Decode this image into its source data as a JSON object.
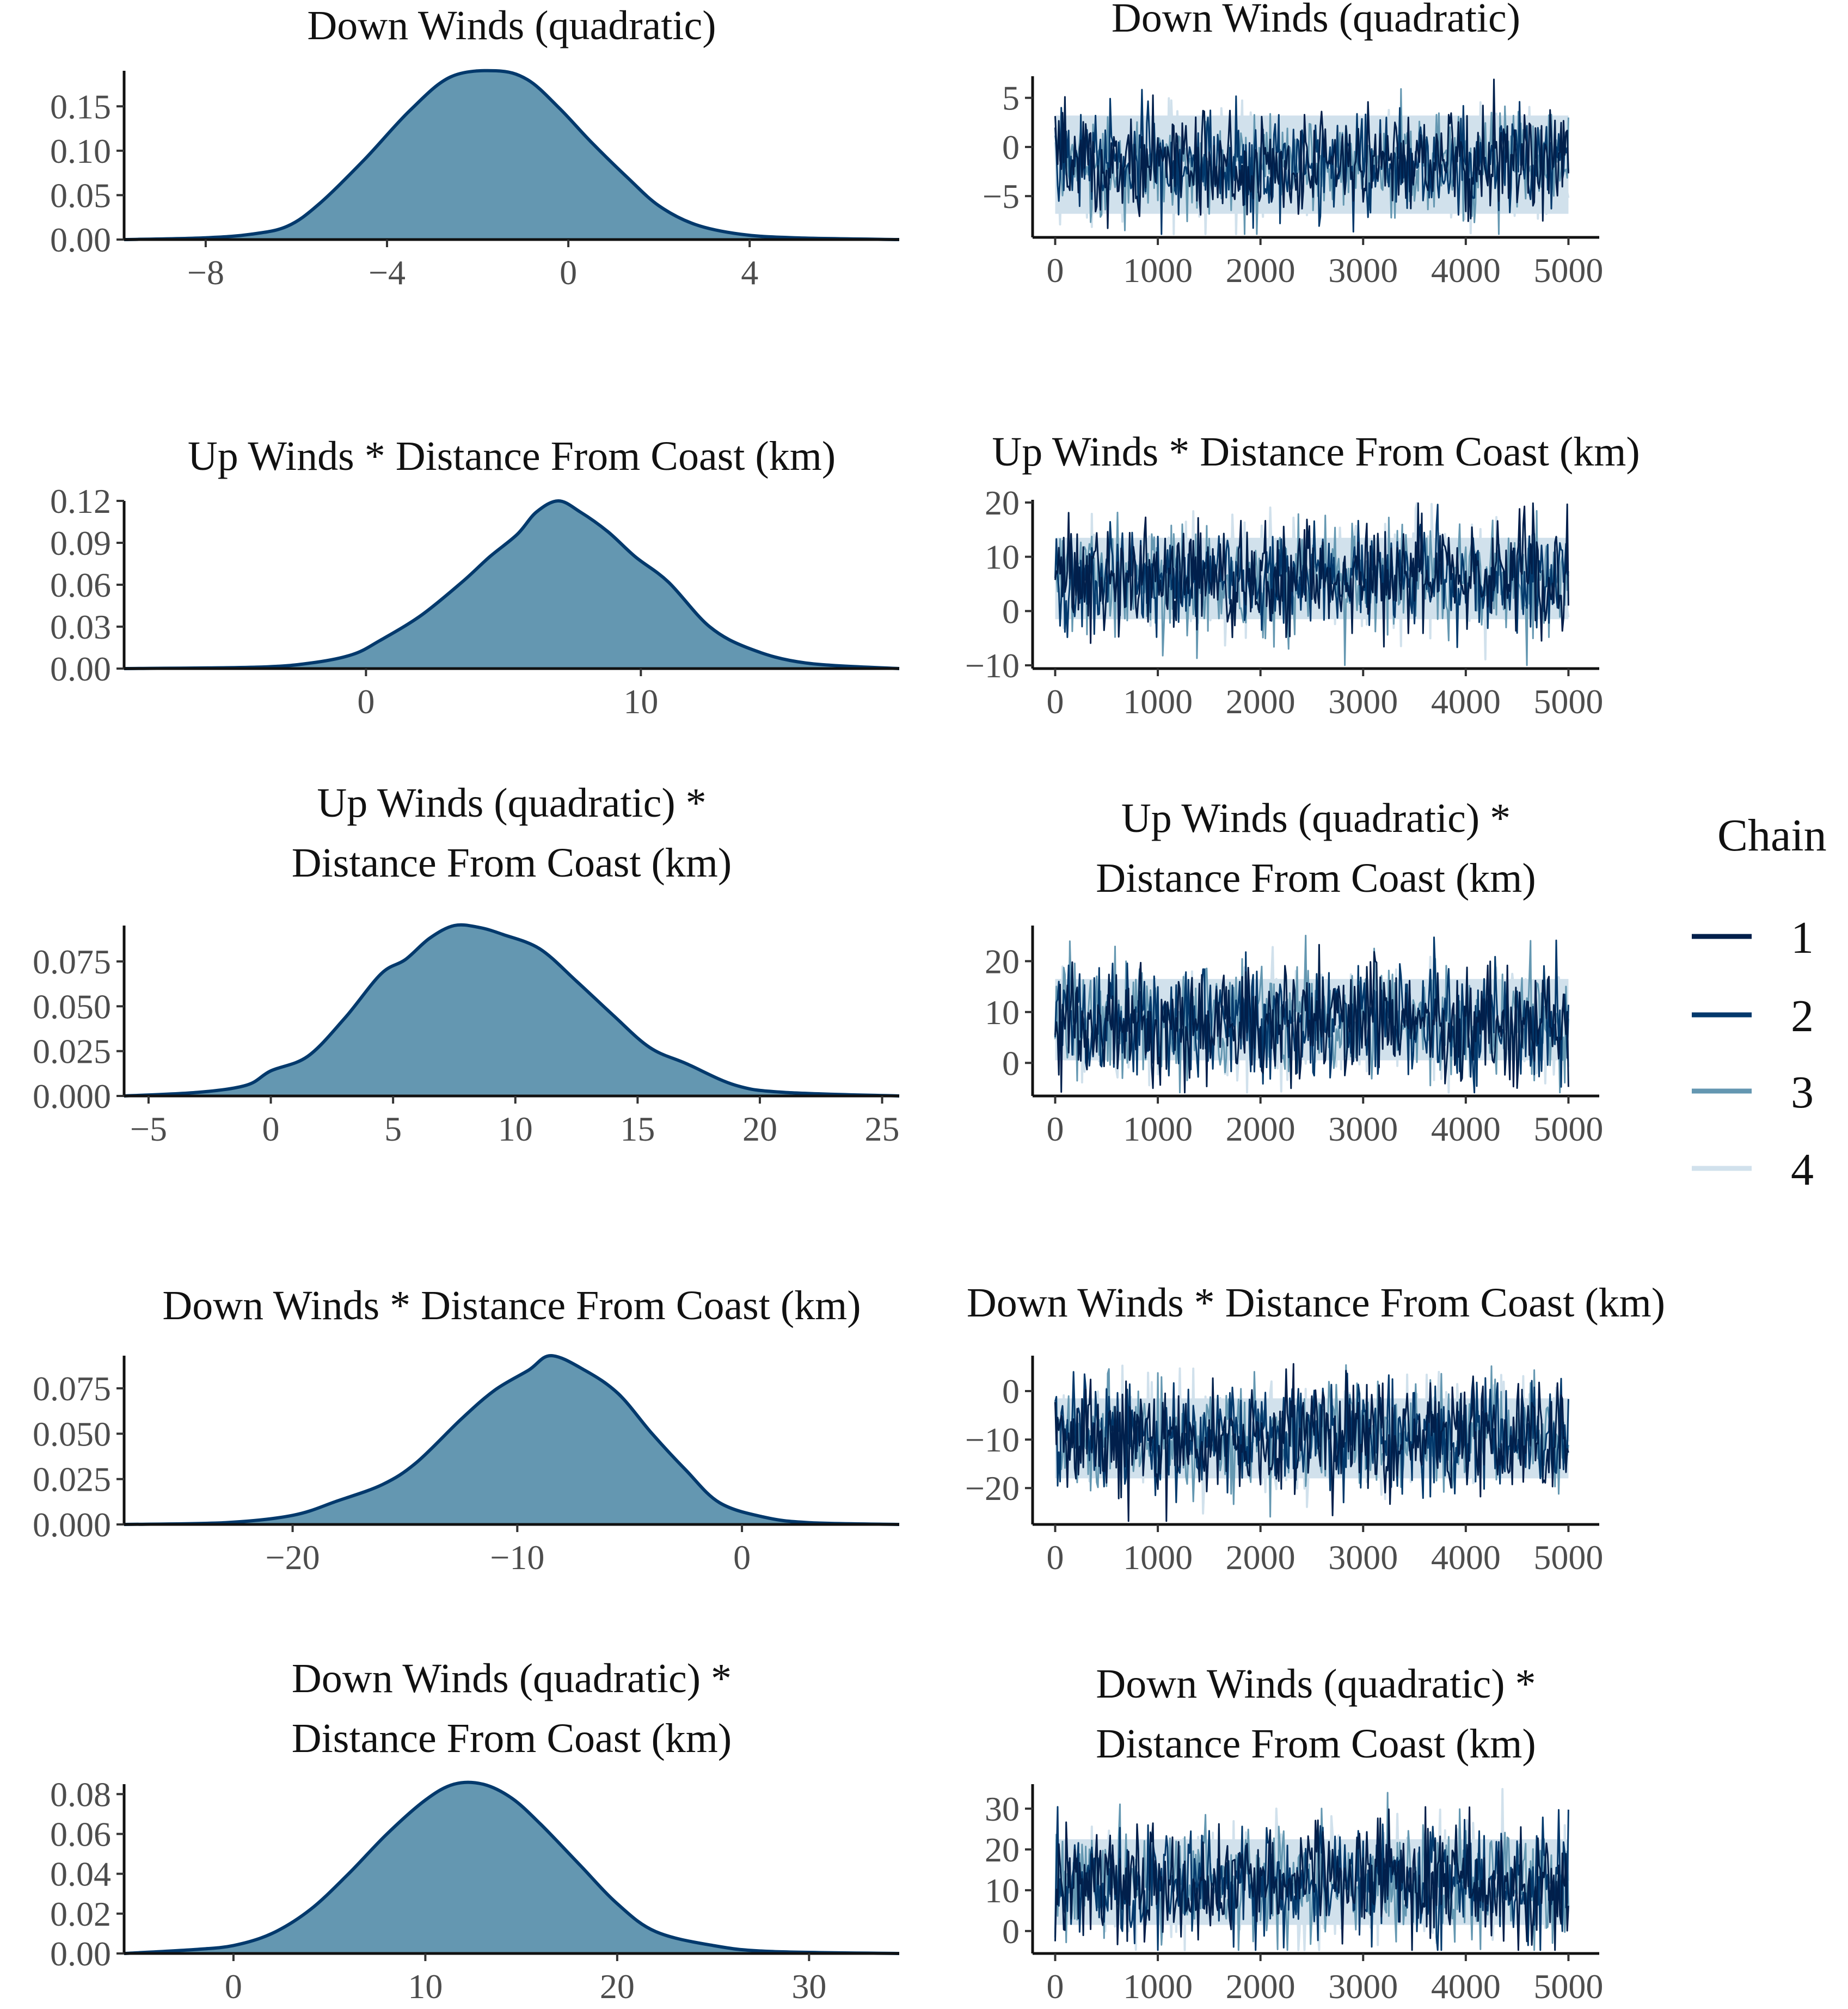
{
  "legend": {
    "title": "Chain",
    "items": [
      {
        "label": "1",
        "color": "#011f4b"
      },
      {
        "label": "2",
        "color": "#03396c"
      },
      {
        "label": "3",
        "color": "#6497b1"
      },
      {
        "label": "4",
        "color": "#d1e1ec"
      }
    ]
  },
  "colors": {
    "density_fill": "#6497b1",
    "density_line": "#03396c",
    "trace_band": "#d1e1ec"
  },
  "chart_data": [
    {
      "id": "d1",
      "type": "area",
      "title": [
        "Down Winds (quadratic)"
      ],
      "xlim": [
        -9.8,
        7.3
      ],
      "ylim": [
        0,
        0.19
      ],
      "xticks": [
        {
          "v": -8,
          "label": "−8"
        },
        {
          "v": -4,
          "label": "−4"
        },
        {
          "v": 0,
          "label": "0"
        },
        {
          "v": 4,
          "label": "4"
        }
      ],
      "yticks": [
        {
          "v": 0,
          "label": "0.00"
        },
        {
          "v": 0.05,
          "label": "0.05"
        },
        {
          "v": 0.1,
          "label": "0.10"
        },
        {
          "v": 0.15,
          "label": "0.15"
        }
      ],
      "x": [
        -9.8,
        -8,
        -7,
        -6.2,
        -5.5,
        -4.5,
        -3.5,
        -2.6,
        -1.6,
        -0.9,
        -0.2,
        0.5,
        1.3,
        2,
        2.8,
        3.8,
        5,
        7.3
      ],
      "y": [
        0,
        0.002,
        0.006,
        0.015,
        0.04,
        0.09,
        0.145,
        0.183,
        0.19,
        0.18,
        0.148,
        0.11,
        0.07,
        0.038,
        0.017,
        0.006,
        0.002,
        0
      ]
    },
    {
      "id": "t1",
      "type": "line",
      "title": [
        "Down Winds (quadratic)"
      ],
      "xlim": [
        -220,
        5300
      ],
      "ylim": [
        -9.2,
        7.2
      ],
      "xticks": [
        {
          "v": 0,
          "label": "0"
        },
        {
          "v": 1000,
          "label": "1000"
        },
        {
          "v": 2000,
          "label": "2000"
        },
        {
          "v": 3000,
          "label": "3000"
        },
        {
          "v": 4000,
          "label": "4000"
        },
        {
          "v": 5000,
          "label": "5000"
        }
      ],
      "yticks": [
        {
          "v": -5,
          "label": "−5"
        },
        {
          "v": 0,
          "label": "0"
        },
        {
          "v": 5,
          "label": "5"
        }
      ],
      "band": [
        -6.8,
        3.2
      ],
      "chain_mean": -1.8,
      "chain_spread": 2.6,
      "x_max": 5000
    },
    {
      "id": "d2",
      "type": "area",
      "title": [
        "Up Winds * Distance From Coast (km)"
      ],
      "xlim": [
        -8.8,
        19.4
      ],
      "ylim": [
        0,
        0.12
      ],
      "xticks": [
        {
          "v": 0,
          "label": "0"
        },
        {
          "v": 10,
          "label": "10"
        }
      ],
      "yticks": [
        {
          "v": 0,
          "label": "0.00"
        },
        {
          "v": 0.03,
          "label": "0.03"
        },
        {
          "v": 0.06,
          "label": "0.06"
        },
        {
          "v": 0.09,
          "label": "0.09"
        },
        {
          "v": 0.12,
          "label": "0.12"
        }
      ],
      "x": [
        -8.8,
        -4,
        -2,
        -0.5,
        0.5,
        2,
        3.5,
        4.5,
        5.5,
        6.2,
        7,
        7.8,
        8.8,
        9.8,
        11,
        12.5,
        14,
        16,
        19.4
      ],
      "y": [
        0,
        0.001,
        0.004,
        0.01,
        0.02,
        0.038,
        0.062,
        0.08,
        0.096,
        0.112,
        0.12,
        0.112,
        0.098,
        0.08,
        0.062,
        0.03,
        0.014,
        0.004,
        0
      ]
    },
    {
      "id": "t2",
      "type": "line",
      "title": [
        "Up Winds * Distance From Coast (km)"
      ],
      "xlim": [
        -220,
        5300
      ],
      "ylim": [
        -10.6,
        20.5
      ],
      "xticks": [
        {
          "v": 0,
          "label": "0"
        },
        {
          "v": 1000,
          "label": "1000"
        },
        {
          "v": 2000,
          "label": "2000"
        },
        {
          "v": 3000,
          "label": "3000"
        },
        {
          "v": 4000,
          "label": "4000"
        },
        {
          "v": 5000,
          "label": "5000"
        }
      ],
      "yticks": [
        {
          "v": -10,
          "label": "−10"
        },
        {
          "v": 0,
          "label": "0"
        },
        {
          "v": 10,
          "label": "10"
        },
        {
          "v": 20,
          "label": "20"
        }
      ],
      "band": [
        -1.5,
        13.5
      ],
      "chain_mean": 6.2,
      "chain_spread": 4.8,
      "x_max": 5000
    },
    {
      "id": "d3",
      "type": "area",
      "title": [
        "Up Winds (quadratic) *",
        "Distance From Coast (km)"
      ],
      "xlim": [
        -6,
        25.7
      ],
      "ylim": [
        0,
        0.095
      ],
      "xticks": [
        {
          "v": -5,
          "label": "−5"
        },
        {
          "v": 0,
          "label": "0"
        },
        {
          "v": 5,
          "label": "5"
        },
        {
          "v": 10,
          "label": "10"
        },
        {
          "v": 15,
          "label": "15"
        },
        {
          "v": 20,
          "label": "20"
        },
        {
          "v": 25,
          "label": "25"
        }
      ],
      "yticks": [
        {
          "v": 0,
          "label": "0.000"
        },
        {
          "v": 0.025,
          "label": "0.025"
        },
        {
          "v": 0.05,
          "label": "0.050"
        },
        {
          "v": 0.075,
          "label": "0.075"
        }
      ],
      "x": [
        -6,
        -3,
        -1,
        0,
        1.5,
        3,
        4.5,
        5.5,
        6.5,
        7.5,
        8.5,
        9.5,
        11,
        12.5,
        14,
        15.5,
        17,
        19,
        21,
        25.7
      ],
      "y": [
        0,
        0.002,
        0.006,
        0.014,
        0.022,
        0.043,
        0.068,
        0.076,
        0.088,
        0.095,
        0.094,
        0.09,
        0.082,
        0.064,
        0.045,
        0.027,
        0.018,
        0.006,
        0.002,
        0
      ]
    },
    {
      "id": "t3",
      "type": "line",
      "title": [
        "Up Winds (quadratic) *",
        "Distance From Coast (km)"
      ],
      "xlim": [
        -220,
        5300
      ],
      "ylim": [
        -6.5,
        27
      ],
      "xticks": [
        {
          "v": 0,
          "label": "0"
        },
        {
          "v": 1000,
          "label": "1000"
        },
        {
          "v": 2000,
          "label": "2000"
        },
        {
          "v": 3000,
          "label": "3000"
        },
        {
          "v": 4000,
          "label": "4000"
        },
        {
          "v": 5000,
          "label": "5000"
        }
      ],
      "yticks": [
        {
          "v": 0,
          "label": "0"
        },
        {
          "v": 10,
          "label": "10"
        },
        {
          "v": 20,
          "label": "20"
        }
      ],
      "band": [
        0.5,
        16.5
      ],
      "chain_mean": 8,
      "chain_spread": 5.6,
      "x_max": 5000
    },
    {
      "id": "d4",
      "type": "area",
      "title": [
        "Down Winds * Distance From Coast (km)"
      ],
      "xlim": [
        -27.5,
        7
      ],
      "ylim": [
        0,
        0.093
      ],
      "xticks": [
        {
          "v": -20,
          "label": "−20"
        },
        {
          "v": -10,
          "label": "−10"
        },
        {
          "v": 0,
          "label": "0"
        }
      ],
      "yticks": [
        {
          "v": 0,
          "label": "0.000"
        },
        {
          "v": 0.025,
          "label": "0.025"
        },
        {
          "v": 0.05,
          "label": "0.050"
        },
        {
          "v": 0.075,
          "label": "0.075"
        }
      ],
      "x": [
        -27.5,
        -23,
        -20,
        -18,
        -16,
        -14.5,
        -12.5,
        -11,
        -9.5,
        -8.5,
        -7,
        -5.5,
        -4,
        -2.5,
        -1,
        1,
        3,
        7
      ],
      "y": [
        0,
        0.001,
        0.005,
        0.013,
        0.022,
        0.034,
        0.058,
        0.074,
        0.085,
        0.093,
        0.085,
        0.072,
        0.05,
        0.03,
        0.012,
        0.004,
        0.001,
        0
      ]
    },
    {
      "id": "t4",
      "type": "line",
      "title": [
        "Down Winds * Distance From Coast (km)"
      ],
      "xlim": [
        -220,
        5300
      ],
      "ylim": [
        -27.5,
        7.3
      ],
      "xticks": [
        {
          "v": 0,
          "label": "0"
        },
        {
          "v": 1000,
          "label": "1000"
        },
        {
          "v": 2000,
          "label": "2000"
        },
        {
          "v": 3000,
          "label": "3000"
        },
        {
          "v": 4000,
          "label": "4000"
        },
        {
          "v": 5000,
          "label": "5000"
        }
      ],
      "yticks": [
        {
          "v": -20,
          "label": "−20"
        },
        {
          "v": -10,
          "label": "−10"
        },
        {
          "v": 0,
          "label": "0"
        }
      ],
      "band": [
        -18,
        -1.5
      ],
      "chain_mean": -9.5,
      "chain_spread": 5.8,
      "x_max": 5000
    },
    {
      "id": "d5",
      "type": "area",
      "title": [
        "Down Winds (quadratic) *",
        "Distance From Coast (km)"
      ],
      "xlim": [
        -5.7,
        34.7
      ],
      "ylim": [
        0,
        0.085
      ],
      "xticks": [
        {
          "v": 0,
          "label": "0"
        },
        {
          "v": 10,
          "label": "10"
        },
        {
          "v": 20,
          "label": "20"
        },
        {
          "v": 30,
          "label": "30"
        }
      ],
      "yticks": [
        {
          "v": 0,
          "label": "0.00"
        },
        {
          "v": 0.02,
          "label": "0.02"
        },
        {
          "v": 0.04,
          "label": "0.04"
        },
        {
          "v": 0.06,
          "label": "0.06"
        },
        {
          "v": 0.08,
          "label": "0.08"
        }
      ],
      "x": [
        -5.7,
        -2,
        0,
        2,
        4,
        6,
        8,
        10,
        11.5,
        13,
        14.5,
        16,
        18,
        20,
        22,
        25,
        28,
        34.7
      ],
      "y": [
        0,
        0.002,
        0.004,
        0.01,
        0.022,
        0.04,
        0.06,
        0.077,
        0.085,
        0.085,
        0.078,
        0.065,
        0.045,
        0.025,
        0.011,
        0.004,
        0.001,
        0
      ]
    },
    {
      "id": "t5",
      "type": "line",
      "title": [
        "Down Winds (quadratic) *",
        "Distance From Coast (km)"
      ],
      "xlim": [
        -220,
        5300
      ],
      "ylim": [
        -5.5,
        36
      ],
      "xticks": [
        {
          "v": 0,
          "label": "0"
        },
        {
          "v": 1000,
          "label": "1000"
        },
        {
          "v": 2000,
          "label": "2000"
        },
        {
          "v": 3000,
          "label": "3000"
        },
        {
          "v": 4000,
          "label": "4000"
        },
        {
          "v": 5000,
          "label": "5000"
        }
      ],
      "yticks": [
        {
          "v": 0,
          "label": "0"
        },
        {
          "v": 10,
          "label": "10"
        },
        {
          "v": 20,
          "label": "20"
        },
        {
          "v": 30,
          "label": "30"
        }
      ],
      "band": [
        1.5,
        22.5
      ],
      "chain_mean": 12,
      "chain_spread": 7,
      "x_max": 5000
    }
  ]
}
